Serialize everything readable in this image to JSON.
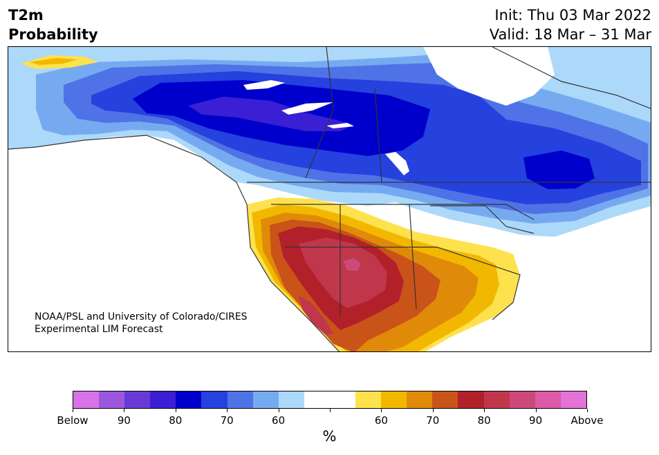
{
  "header": {
    "title_line1": "T2m",
    "title_line2": "Probability",
    "init": "Init: Thu 03 Mar 2022",
    "valid": "Valid: 18 Mar – 31 Mar"
  },
  "map": {
    "credit_line1": "NOAA/PSL and University of Colorado/CIRES",
    "credit_line2": "Experimental LIM Forecast"
  },
  "legend": {
    "colors": [
      "#d673e8",
      "#9d57de",
      "#6a3ad6",
      "#3b1fd4",
      "#0000cc",
      "#2541de",
      "#4f73e6",
      "#76aaf0",
      "#acd8fa",
      "#ffffff",
      "#ffffff",
      "#fde24d",
      "#f2b800",
      "#e08a0a",
      "#c95318",
      "#b2202a",
      "#c0374c",
      "#cc4a7a",
      "#db5ba8",
      "#e373d6"
    ],
    "labels": [
      "Below",
      "90",
      "80",
      "70",
      "60",
      "60",
      "70",
      "80",
      "90",
      "Above"
    ],
    "unit": "%"
  }
}
